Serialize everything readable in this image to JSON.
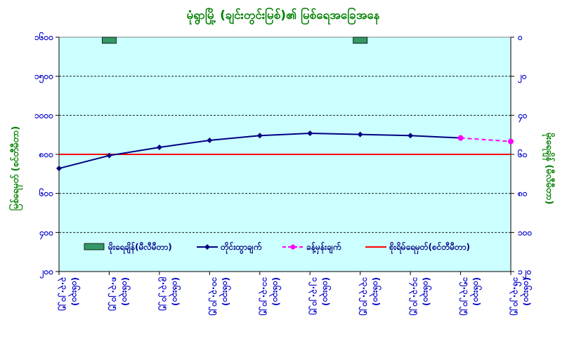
{
  "chart_data": {
    "type": "line",
    "title": "မုံရွာမြို့ (ချင်းတွင်းမြစ်)၏ မြစ်ရေအခြေအနေ",
    "left_axis": {
      "label": "မြစ်ရေမှတ် (စင်တီမီတာ)",
      "ylim": [
        1400,
        1600
      ],
      "ticks": [
        "၁၆၀၀",
        "၁၅၀၀",
        "၁၀၀၀",
        "၈၀၀",
        "၆၀၀",
        "၄၀၀",
        "၂၀၀"
      ]
    },
    "right_axis": {
      "label": "မိုးရေချိန် (မီလီမီတာ)",
      "ticks": [
        "၀",
        "၂၀",
        "၄၀",
        "၆၀",
        "၈၀",
        "၁၀၀",
        "၁၂၀"
      ],
      "ylim": [
        0,
        120
      ]
    },
    "categories": [
      "၃.၃.၂၀၂၅ (၀၆း၃၀)",
      "၈.၃.၂၀၂၅ (၀၆း၃၀)",
      "၉.၃.၂၀၂၅ (၀၆း၃၀)",
      "၁၀.၃.၂၀၂၅ (၀၆း၃၀)",
      "၁၁.၃.၂၀၂၅ (၀၆း၃၀)",
      "၁၂.၃.၂၀၂၅ (၀၆း၃၀)",
      "၁၃.၃.၂၀၂၅ (၀၆း၃၀)",
      "၁၄.၃.၂၀၂၅ (၀၆း၃၀)",
      "၁၅.၃.၂၀၂၅ (၀၆း၃၀)",
      "၁၆.၃.၂၀၂၅ (၀၆း၃၀)"
    ],
    "series": [
      {
        "name": "မိုးရေချိန်(မီလီမီတာ)",
        "kind": "bar",
        "axis": "right",
        "color": "#339966",
        "values": [
          null,
          1,
          null,
          null,
          null,
          null,
          1,
          null,
          null,
          null
        ]
      },
      {
        "name": "တိုင်းထွာချက်",
        "kind": "line",
        "axis": "left",
        "color": "#000080",
        "values": [
          1488,
          1499,
          1506,
          1512,
          1516,
          1518,
          1517,
          1516,
          1514,
          null
        ]
      },
      {
        "name": "ခန့်မှန်းချက်",
        "kind": "dashed-line",
        "axis": "left",
        "color": "#ff00ff",
        "values": [
          null,
          null,
          null,
          null,
          null,
          null,
          null,
          null,
          1514,
          1511
        ]
      },
      {
        "name": "စိုးရိမ်ရေမှတ်(စင်တီမီတာ)",
        "kind": "reference",
        "axis": "left",
        "color": "#ff0000",
        "value": 1500
      }
    ],
    "grid": true,
    "legend": "bottom-inside",
    "colors": {
      "plot_bg": "#ccffff",
      "grid": "#000000",
      "title": "#008000",
      "ticks": "#0000cc"
    }
  }
}
